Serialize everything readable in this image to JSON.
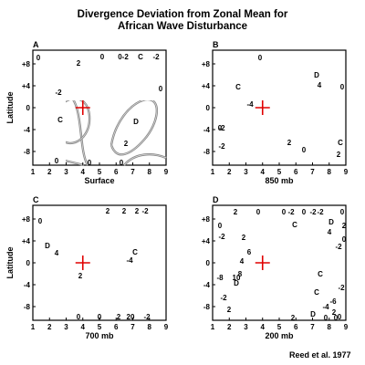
{
  "title": {
    "line1": "Divergence Deviation from Zonal Mean for",
    "line2": "African Wave Disturbance"
  },
  "credit": "Reed et al. 1977",
  "y_axis_label": "Latitude",
  "y_ticks": [
    "+8",
    "+4",
    "0",
    "-4",
    "-8"
  ],
  "x_ticks": [
    "1",
    "2",
    "3",
    "4",
    "5",
    "6",
    "7",
    "8",
    "9"
  ],
  "panels": [
    {
      "letter": "A",
      "level": "Surface",
      "labels": [
        "0",
        "2",
        "0",
        "0-2",
        "C",
        "-2",
        "0",
        "-2",
        "C",
        "D",
        "2",
        "0",
        "0",
        "0"
      ]
    },
    {
      "letter": "B",
      "level": "850 mb",
      "labels": [
        "0",
        "D",
        "4",
        "0",
        "C",
        "-4",
        "0",
        "-2",
        "-2",
        "0",
        "2",
        "2",
        "C"
      ]
    },
    {
      "letter": "C",
      "level": "700 mb",
      "labels": [
        "2",
        "2",
        "2",
        "-2",
        "0",
        "D",
        "4",
        "C",
        "-4",
        "2",
        "0",
        "0",
        "2",
        "20",
        "-2"
      ]
    },
    {
      "letter": "D",
      "level": "200 mb",
      "labels": [
        "2",
        "0",
        "0",
        "-2",
        "0",
        "-2",
        "-2",
        "0",
        "C",
        "D",
        "4",
        "2",
        "C",
        "0",
        "-2",
        "2",
        "6",
        "4",
        "8",
        "10",
        "D",
        "C",
        "-6",
        "-2",
        "-4",
        "0",
        "-8",
        "-2",
        "2",
        "D",
        "2",
        "0",
        "2",
        "0",
        "0",
        "-2"
      ]
    }
  ],
  "marker_color": "#e00000"
}
